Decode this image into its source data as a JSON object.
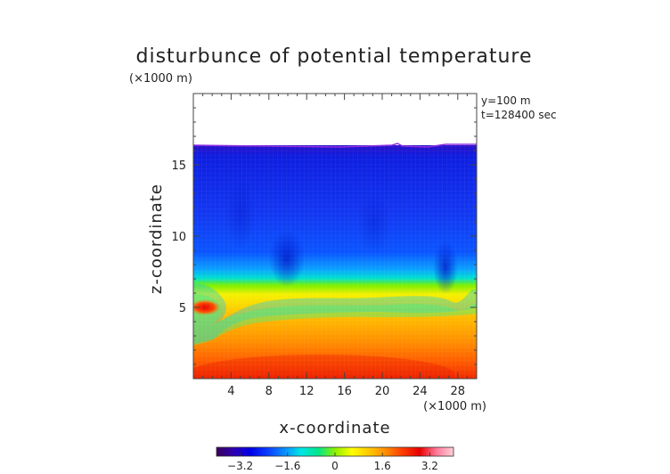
{
  "chart_data": {
    "type": "heatmap",
    "title": "disturbunce of potential temperature",
    "x_unit": "(×1000 m)",
    "z_unit": "(×1000 m)",
    "xlabel": "x-coordinate",
    "ylabel": "z-coordinate",
    "annotations": [
      "y=100 m",
      "t=128400 sec"
    ],
    "xlim": [
      0,
      30
    ],
    "ylim": [
      0,
      20
    ],
    "x_ticks": [
      4,
      8,
      12,
      16,
      20,
      24,
      28
    ],
    "y_ticks": [
      5,
      10,
      15
    ],
    "colorbar": {
      "range": [
        -4,
        4
      ],
      "ticks": [
        "−3.2",
        "−1.6",
        "0",
        "1.6",
        "3.2"
      ],
      "tick_values": [
        -3.2,
        -1.6,
        0,
        1.6,
        3.2
      ],
      "colormap": [
        "#3a005a",
        "#2f00b0",
        "#0000e6",
        "#0a3cff",
        "#0a8cff",
        "#00e6e6",
        "#00e68c",
        "#8cf000",
        "#ffff00",
        "#ffc800",
        "#ff8c00",
        "#ff3c00",
        "#e60000",
        "#ff7a9a",
        "#ffd0d8"
      ]
    },
    "field": {
      "top_of_data_z": 16.4,
      "upper_layer_value": -2.5,
      "inversion_z": 5.8,
      "surface_value": 3.0,
      "warm_pocket": {
        "x": 1.5,
        "z": 5.0,
        "value": 3.4
      }
    }
  }
}
